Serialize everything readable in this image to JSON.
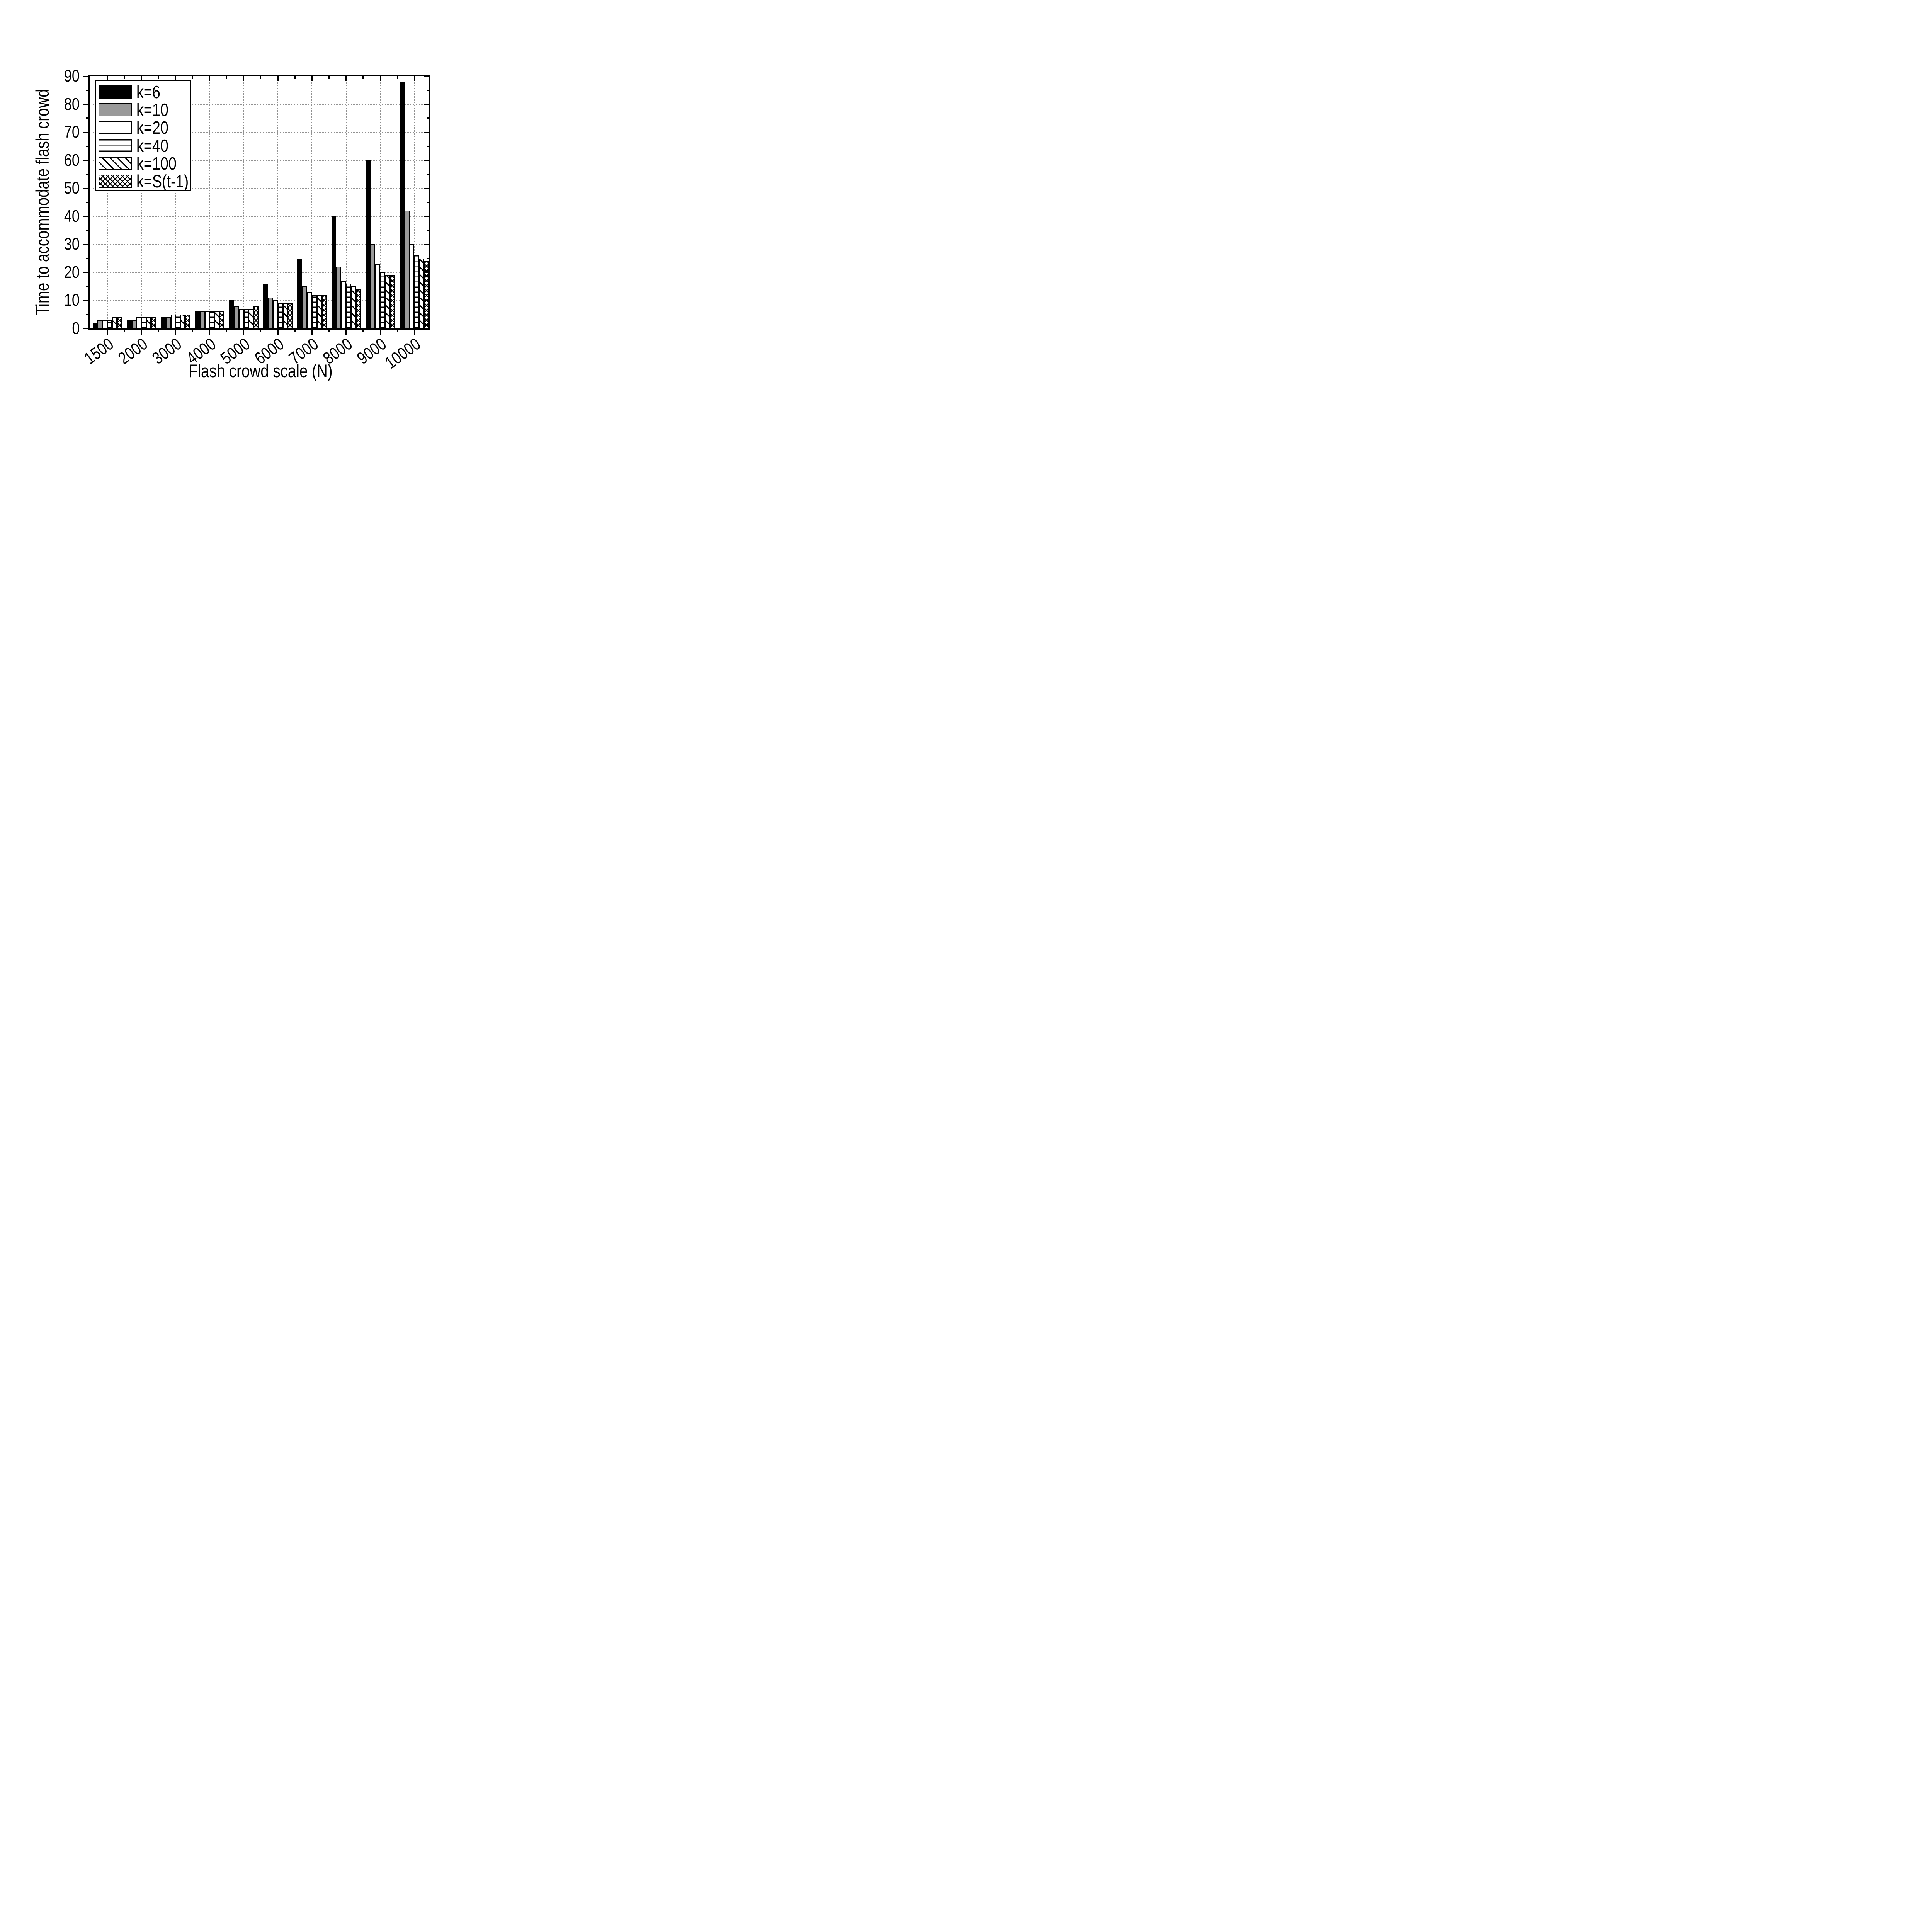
{
  "chart_data": {
    "type": "bar",
    "title": "",
    "xlabel": "Flash crowd scale (N)",
    "ylabel": "Time to accommodate flash crowd",
    "categories": [
      "1500",
      "2000",
      "3000",
      "4000",
      "5000",
      "6000",
      "7000",
      "8000",
      "9000",
      "10000"
    ],
    "series": [
      {
        "name": "k=6",
        "fill": "black",
        "pattern": "solid-black",
        "values": [
          2,
          3,
          4,
          6,
          10,
          16,
          25,
          40,
          60,
          88
        ]
      },
      {
        "name": "k=10",
        "fill": "gray",
        "pattern": "solid-gray",
        "values": [
          3,
          3,
          4,
          6,
          8,
          11,
          15,
          22,
          30,
          42
        ]
      },
      {
        "name": "k=20",
        "fill": "white",
        "pattern": "empty-white",
        "values": [
          3,
          4,
          5,
          6,
          7,
          10,
          13,
          17,
          23,
          30
        ]
      },
      {
        "name": "k=40",
        "fill": "hlines",
        "pattern": "horizontal-lines",
        "values": [
          3,
          4,
          5,
          6,
          7,
          9,
          12,
          16,
          20,
          26
        ]
      },
      {
        "name": "k=100",
        "fill": "diag",
        "pattern": "diagonal-lines",
        "values": [
          4,
          4,
          5,
          6,
          7,
          9,
          12,
          15,
          19,
          25
        ]
      },
      {
        "name": "k=S(t-1)",
        "fill": "cross",
        "pattern": "crosshatch",
        "values": [
          4,
          4,
          5,
          6,
          8,
          9,
          12,
          14,
          19,
          24
        ]
      }
    ],
    "ylim": [
      0,
      90
    ],
    "ytick_major_step": 10,
    "ytick_minor_step": 5,
    "grid": "dotted",
    "grid_on": true,
    "legend_position": "upper-left",
    "colors": {
      "bar_black": "#000000",
      "bar_gray": "#9a9a9a",
      "bar_white": "#ffffff",
      "outline": "#000000",
      "grid": "#909090",
      "background": "#ffffff",
      "text": "#000000"
    }
  }
}
